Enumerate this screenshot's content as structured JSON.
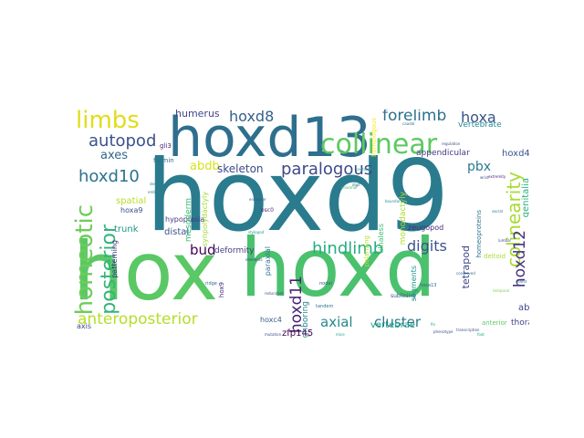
{
  "words": [
    {
      "text": "hoxd9",
      "color": "#2a7b8e",
      "vertical": false
    },
    {
      "text": "hoxd",
      "color": "#4ac16d",
      "vertical": false
    },
    {
      "text": "hox",
      "color": "#5ac864",
      "vertical": false
    },
    {
      "text": "hoxd13",
      "color": "#2e6f8e",
      "vertical": false
    },
    {
      "text": "collinear",
      "color": "#5ec962",
      "vertical": false
    },
    {
      "text": "limbs",
      "color": "#e1dd1b",
      "vertical": false
    },
    {
      "text": "homeotic",
      "color": "#6ccd5a",
      "vertical": true
    },
    {
      "text": "posterior",
      "color": "#31b57b",
      "vertical": true
    },
    {
      "text": "colinearity",
      "color": "#a8db34",
      "vertical": true
    },
    {
      "text": "hoxd10",
      "color": "#2c728e",
      "vertical": false
    },
    {
      "text": "autopod",
      "color": "#3b528b",
      "vertical": false
    },
    {
      "text": "anteroposterior",
      "color": "#b5de2b",
      "vertical": false
    },
    {
      "text": "hindlimb",
      "color": "#27ad81",
      "vertical": false
    },
    {
      "text": "paralogous",
      "color": "#3e4a89",
      "vertical": false
    },
    {
      "text": "hoxd12",
      "color": "#46327e",
      "vertical": true
    },
    {
      "text": "forelimb",
      "color": "#2d708e",
      "vertical": false
    },
    {
      "text": "hoxa",
      "color": "#3a538b",
      "vertical": false
    },
    {
      "text": "hoxd8",
      "color": "#355f8d",
      "vertical": false
    },
    {
      "text": "hoxd11",
      "color": "#482173",
      "vertical": true
    },
    {
      "text": "digits",
      "color": "#3b528b",
      "vertical": false
    },
    {
      "text": "axial",
      "color": "#23888e",
      "vertical": false
    },
    {
      "text": "cluster",
      "color": "#2a788e",
      "vertical": false
    },
    {
      "text": "bud",
      "color": "#440154",
      "vertical": false
    },
    {
      "text": "abdb",
      "color": "#d8e219",
      "vertical": false
    },
    {
      "text": "axes",
      "color": "#31678e",
      "vertical": false
    },
    {
      "text": "pbx",
      "color": "#297a8e",
      "vertical": false
    },
    {
      "text": "skeleton",
      "color": "#3e4989",
      "vertical": false
    },
    {
      "text": "humerus",
      "color": "#404688",
      "vertical": false
    },
    {
      "text": "tetrapod",
      "color": "#3f4788",
      "vertical": true
    },
    {
      "text": "vertebrae",
      "color": "#1fa088",
      "vertical": false
    },
    {
      "text": "genitalia",
      "color": "#2ab07f",
      "vertical": true
    },
    {
      "text": "hoxd4",
      "color": "#3b528b",
      "vertical": false
    },
    {
      "text": "vertebrate",
      "color": "#23898e",
      "vertical": false
    },
    {
      "text": "appendicular",
      "color": "#443983",
      "vertical": false
    },
    {
      "text": "monodactyly",
      "color": "#addc30",
      "vertical": true
    },
    {
      "text": "zeugopod",
      "color": "#472c7a",
      "vertical": false
    },
    {
      "text": "distal",
      "color": "#3b528b",
      "vertical": false
    },
    {
      "text": "trunk",
      "color": "#1f968b",
      "vertical": false
    },
    {
      "text": "hypoplasia",
      "color": "#453882",
      "vertical": false
    },
    {
      "text": "deformity",
      "color": "#433e85",
      "vertical": false
    },
    {
      "text": "mesoderm",
      "color": "#3bbb75",
      "vertical": true
    },
    {
      "text": "synpolydactyly",
      "color": "#a2da37",
      "vertical": true
    },
    {
      "text": "paraxial",
      "color": "#2a788e",
      "vertical": true
    },
    {
      "text": "spatial",
      "color": "#b8de29",
      "vertical": false
    },
    {
      "text": "patterning",
      "color": "#46337f",
      "vertical": true
    },
    {
      "text": "hoxa9",
      "color": "#3d4e8a",
      "vertical": false
    },
    {
      "text": "abd-b",
      "color": "#404588",
      "vertical": false
    },
    {
      "text": "thoracic",
      "color": "#414487",
      "vertical": false
    },
    {
      "text": "anterior",
      "color": "#5ec962",
      "vertical": false
    },
    {
      "text": "deltoid",
      "color": "#addc30",
      "vertical": false
    },
    {
      "text": "segments",
      "color": "#1e9b8a",
      "vertical": true
    },
    {
      "text": "neighboring",
      "color": "#25848e",
      "vertical": true
    },
    {
      "text": "zfp145",
      "color": "#440154",
      "vertical": false
    },
    {
      "text": "hoxc4",
      "color": "#355f8d",
      "vertical": false
    },
    {
      "text": "axis",
      "color": "#3e4989",
      "vertical": false
    },
    {
      "text": "ulnaless",
      "color": "#3fbc73",
      "vertical": true
    },
    {
      "text": "polarizing",
      "color": "#bddf26",
      "vertical": true
    },
    {
      "text": "homeoproteins",
      "color": "#2c728e",
      "vertical": true
    },
    {
      "text": "homologous",
      "color": "#fde725",
      "vertical": true
    },
    {
      "text": "gli3",
      "color": "#481f70",
      "vertical": false
    },
    {
      "text": "formin",
      "color": "#2c738e",
      "vertical": false
    },
    {
      "text": "hox9",
      "color": "#472d7b",
      "vertical": true
    },
    {
      "text": "osc0",
      "color": "#482475",
      "vertical": false
    },
    {
      "text": "ridge",
      "color": "#2d708e",
      "vertical": false
    },
    {
      "text": "nodal",
      "color": "#3b528b",
      "vertical": false
    },
    {
      "text": "sublining",
      "color": "#3b528b",
      "vertical": false
    },
    {
      "text": "hoxa13",
      "color": "#34618d",
      "vertical": false
    },
    {
      "text": "tandem",
      "color": "#2c738e",
      "vertical": false
    },
    {
      "text": "embryos",
      "color": "#25858e",
      "vertical": false
    },
    {
      "text": "skeletal",
      "color": "#24868e",
      "vertical": false
    },
    {
      "text": "proximal",
      "color": "#3dbc74",
      "vertical": false
    },
    {
      "text": "pectoral",
      "color": "#27ad81",
      "vertical": false
    },
    {
      "text": "digit",
      "color": "#31688e",
      "vertical": false
    },
    {
      "text": "enhancer",
      "color": "#39568c",
      "vertical": false
    },
    {
      "text": "elements",
      "color": "#3e4a89",
      "vertical": false
    },
    {
      "text": "stylopod",
      "color": "#1f988b",
      "vertical": false
    },
    {
      "text": "conserved",
      "color": "#2e6e8e",
      "vertical": false
    },
    {
      "text": "regulation",
      "color": "#3b528b",
      "vertical": false
    },
    {
      "text": "expression",
      "color": "#26828e",
      "vertical": false
    },
    {
      "text": "mutation",
      "color": "#3e4c8a",
      "vertical": false
    },
    {
      "text": "transcription",
      "color": "#3b528b",
      "vertical": false
    },
    {
      "text": "mapping",
      "color": "#433d84",
      "vertical": false
    },
    {
      "text": "boundaries",
      "color": "#1f958b",
      "vertical": false
    },
    {
      "text": "extremity",
      "color": "#482878",
      "vertical": false
    },
    {
      "text": "temporal",
      "color": "#7ad151",
      "vertical": false
    },
    {
      "text": "lumbar",
      "color": "#3b528b",
      "vertical": false
    },
    {
      "text": "sacral",
      "color": "#2b758e",
      "vertical": false
    },
    {
      "text": "caudal",
      "color": "#2d708e",
      "vertical": false
    },
    {
      "text": "fin",
      "color": "#20a386",
      "vertical": false
    },
    {
      "text": "phenotype",
      "color": "#3b528b",
      "vertical": false
    },
    {
      "text": "mice",
      "color": "#1fa187",
      "vertical": false
    },
    {
      "text": "redundant",
      "color": "#3b528b",
      "vertical": false
    },
    {
      "text": "hand",
      "color": "#2a788e",
      "vertical": false
    },
    {
      "text": "foot",
      "color": "#22a785",
      "vertical": false
    },
    {
      "text": "wrist",
      "color": "#3b528b",
      "vertical": false
    }
  ]
}
